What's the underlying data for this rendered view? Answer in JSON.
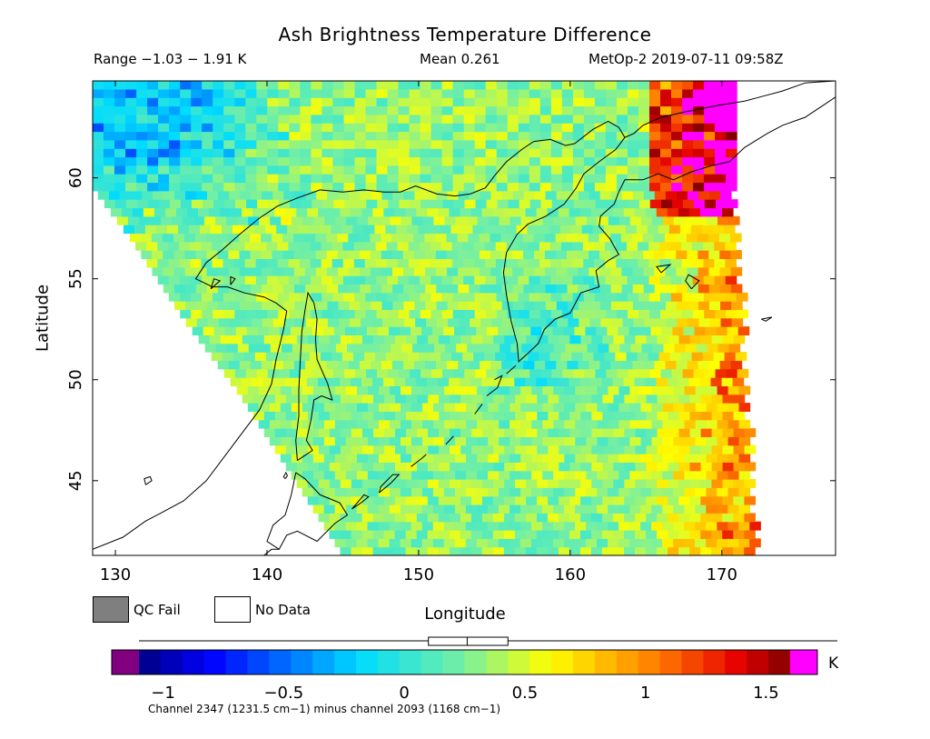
{
  "header": {
    "title": "Ash Brightness Temperature Difference",
    "range": "Range −1.03 − 1.91 K",
    "mean": "Mean 0.261",
    "satellite_time": "MetOp-2 2019-07-11 09:58Z"
  },
  "legend": {
    "qc_fail": "QC Fail",
    "no_data": "No Data",
    "qc_fail_color": "#7f7f7f",
    "no_data_color": "#ffffff"
  },
  "colorbar": {
    "unit": "K",
    "ticks": [
      "−1",
      "−0.5",
      "0",
      "0.5",
      "1",
      "1.5"
    ],
    "tick_values": [
      -1,
      -0.5,
      0,
      0.5,
      1,
      1.5
    ],
    "vmin": -1.1,
    "vmax": 1.6,
    "under_color": "#800080",
    "over_color": "#ff00ff",
    "channel_note": "Channel 2347 (1231.5 cm−1) minus channel 2093 (1168 cm−1)",
    "range_box": [
      0.1,
      0.43
    ],
    "mean_value": 0.261
  },
  "chart_data": {
    "type": "heatmap",
    "title": "Ash Brightness Temperature Difference",
    "xlabel": "Longitude",
    "ylabel": "Latitude",
    "xlim": [
      128.5,
      177.5
    ],
    "ylim": [
      41.3,
      64.8
    ],
    "x_ticks": [
      "130",
      "140",
      "150",
      "160",
      "170"
    ],
    "x_tick_values": [
      130,
      140,
      150,
      160,
      170
    ],
    "y_ticks": [
      "45",
      "50",
      "55",
      "60"
    ],
    "y_tick_values": [
      45,
      50,
      55,
      60
    ],
    "swath": {
      "east_edge": [
        [
          170.5,
          64.8
        ],
        [
          170.5,
          60
        ],
        [
          172,
          41.3
        ]
      ],
      "west_edge": [
        [
          128.5,
          59.5
        ],
        [
          131,
          57
        ],
        [
          134.5,
          53
        ],
        [
          138,
          49.5
        ],
        [
          141,
          46
        ],
        [
          145,
          41.3
        ]
      ]
    },
    "field_description": "BTD values mostly 0.1–0.6 K over the swath; negative values (−0.5 to −1) in the northwest corner; high values (1.0–1.9 K) along the northeastern edge near 165–170E, 58–65N",
    "value_range": [
      -1.03,
      1.91
    ],
    "mean": 0.261
  },
  "coastlines": {
    "polylines": [
      [
        [
          128.5,
          41.6
        ],
        [
          130.5,
          42.2
        ],
        [
          132.0,
          43.0
        ],
        [
          133.0,
          43.4
        ],
        [
          134.5,
          44.0
        ],
        [
          136.0,
          45.0
        ],
        [
          137.3,
          46.3
        ],
        [
          138.5,
          47.5
        ],
        [
          139.5,
          48.5
        ],
        [
          140.3,
          49.8
        ],
        [
          140.6,
          51.0
        ],
        [
          141.1,
          52.5
        ],
        [
          141.3,
          53.4
        ],
        [
          140.6,
          53.8
        ],
        [
          139.8,
          54.1
        ],
        [
          138.5,
          54.3
        ],
        [
          137.4,
          54.6
        ],
        [
          136.4,
          54.6
        ],
        [
          135.3,
          55.0
        ],
        [
          136.0,
          55.8
        ],
        [
          137.0,
          56.4
        ],
        [
          138.2,
          57.2
        ],
        [
          139.5,
          58.0
        ],
        [
          140.7,
          58.6
        ],
        [
          142.0,
          59.0
        ],
        [
          143.5,
          59.4
        ],
        [
          145.0,
          59.3
        ],
        [
          146.4,
          59.4
        ],
        [
          147.7,
          59.3
        ],
        [
          148.8,
          59.3
        ],
        [
          149.8,
          59.6
        ],
        [
          151.2,
          59.2
        ],
        [
          152.4,
          59.1
        ],
        [
          153.4,
          59.2
        ],
        [
          154.4,
          59.5
        ],
        [
          155.0,
          60.1
        ],
        [
          155.8,
          60.8
        ],
        [
          156.8,
          61.4
        ],
        [
          157.6,
          61.8
        ],
        [
          158.7,
          61.9
        ],
        [
          159.7,
          61.6
        ],
        [
          160.3,
          61.7
        ],
        [
          161.5,
          62.4
        ],
        [
          162.5,
          62.8
        ],
        [
          163.2,
          62.5
        ],
        [
          163.6,
          62.0
        ],
        [
          164.2,
          62.2
        ],
        [
          164.8,
          62.6
        ],
        [
          166.0,
          63.0
        ],
        [
          167.8,
          63.3
        ],
        [
          169.8,
          63.6
        ],
        [
          171.5,
          63.8
        ],
        [
          172.5,
          64.0
        ],
        [
          174.0,
          64.3
        ],
        [
          175.5,
          64.7
        ],
        [
          177.5,
          64.8
        ]
      ],
      [
        [
          177.5,
          64.0
        ],
        [
          176.5,
          63.5
        ],
        [
          175.5,
          63.0
        ],
        [
          174.0,
          62.6
        ],
        [
          173.0,
          62.2
        ],
        [
          171.5,
          61.5
        ],
        [
          170.5,
          60.8
        ],
        [
          169.3,
          60.6
        ],
        [
          168.0,
          60.3
        ],
        [
          166.8,
          59.9
        ],
        [
          165.8,
          60.2
        ],
        [
          164.8,
          59.9
        ],
        [
          163.6,
          59.9
        ],
        [
          163.2,
          59.3
        ],
        [
          162.9,
          58.7
        ],
        [
          162.0,
          58.1
        ],
        [
          161.9,
          57.6
        ],
        [
          162.6,
          57.0
        ],
        [
          163.2,
          56.2
        ],
        [
          162.5,
          55.9
        ],
        [
          161.7,
          55.4
        ],
        [
          161.9,
          54.6
        ],
        [
          160.7,
          54.3
        ],
        [
          160.0,
          53.3
        ],
        [
          159.0,
          53.0
        ],
        [
          158.3,
          52.5
        ],
        [
          157.9,
          51.8
        ],
        [
          157.2,
          51.3
        ],
        [
          156.6,
          50.9
        ],
        [
          156.5,
          51.8
        ],
        [
          156.1,
          52.9
        ],
        [
          155.8,
          54.2
        ],
        [
          155.6,
          55.3
        ],
        [
          155.8,
          56.3
        ],
        [
          156.5,
          57.2
        ],
        [
          157.2,
          57.7
        ],
        [
          158.4,
          58.1
        ],
        [
          159.6,
          58.7
        ],
        [
          160.4,
          59.5
        ],
        [
          160.9,
          60.2
        ],
        [
          161.9,
          60.8
        ],
        [
          163.0,
          61.4
        ],
        [
          163.6,
          62.0
        ]
      ],
      [
        [
          142.0,
          46.0
        ],
        [
          141.9,
          47.0
        ],
        [
          142.1,
          48.2
        ],
        [
          142.1,
          49.5
        ],
        [
          142.2,
          51.0
        ],
        [
          142.3,
          52.4
        ],
        [
          142.5,
          53.4
        ],
        [
          142.7,
          54.3
        ],
        [
          143.1,
          53.8
        ],
        [
          143.3,
          53.0
        ],
        [
          143.2,
          52.0
        ],
        [
          143.3,
          51.0
        ],
        [
          144.0,
          49.8
        ],
        [
          144.3,
          49.0
        ],
        [
          143.6,
          49.2
        ],
        [
          143.1,
          49.0
        ],
        [
          142.9,
          48.0
        ],
        [
          142.6,
          47.0
        ],
        [
          143.0,
          46.5
        ],
        [
          142.6,
          46.3
        ],
        [
          142.0,
          46.0
        ]
      ],
      [
        [
          141.9,
          45.4
        ],
        [
          141.6,
          44.3
        ],
        [
          141.2,
          43.3
        ],
        [
          140.4,
          42.8
        ],
        [
          140.0,
          42.0
        ],
        [
          140.8,
          41.6
        ],
        [
          141.3,
          42.3
        ],
        [
          142.0,
          42.5
        ],
        [
          143.3,
          42.0
        ],
        [
          144.5,
          42.9
        ],
        [
          145.3,
          43.3
        ],
        [
          144.8,
          43.9
        ],
        [
          143.5,
          44.3
        ],
        [
          142.5,
          45.1
        ],
        [
          141.9,
          45.4
        ]
      ],
      [
        [
          139.8,
          41.3
        ],
        [
          140.3,
          41.6
        ],
        [
          140.8,
          41.6
        ]
      ]
    ],
    "islands": [
      [
        [
          132.0,
          44.8
        ],
        [
          132.4,
          45.0
        ],
        [
          132.3,
          45.2
        ],
        [
          131.9,
          45.1
        ],
        [
          132.0,
          44.8
        ]
      ],
      [
        [
          141.2,
          45.1
        ],
        [
          141.35,
          45.25
        ],
        [
          141.25,
          45.4
        ],
        [
          141.1,
          45.2
        ],
        [
          141.2,
          45.1
        ]
      ],
      [
        [
          145.6,
          43.6
        ],
        [
          146.2,
          43.9
        ],
        [
          146.7,
          44.2
        ],
        [
          146.4,
          44.3
        ],
        [
          145.6,
          43.6
        ]
      ],
      [
        [
          147.4,
          44.4
        ],
        [
          148.2,
          44.9
        ],
        [
          148.7,
          45.3
        ],
        [
          148.3,
          45.3
        ],
        [
          147.5,
          44.7
        ],
        [
          147.4,
          44.4
        ]
      ],
      [
        [
          149.5,
          45.7
        ],
        [
          150.2,
          46.1
        ],
        [
          150.5,
          46.3
        ]
      ],
      [
        [
          151.8,
          46.8
        ],
        [
          152.3,
          47.2
        ]
      ],
      [
        [
          153.7,
          48.3
        ],
        [
          154.2,
          48.8
        ]
      ],
      [
        [
          154.5,
          49.2
        ],
        [
          155.2,
          49.6
        ],
        [
          155.5,
          50.2
        ],
        [
          155.0,
          50.0
        ]
      ],
      [
        [
          155.8,
          50.3
        ],
        [
          156.4,
          50.7
        ]
      ],
      [
        [
          168.0,
          54.5
        ],
        [
          168.5,
          54.9
        ],
        [
          167.8,
          55.2
        ],
        [
          167.6,
          54.9
        ],
        [
          168.0,
          54.5
        ]
      ],
      [
        [
          166.0,
          55.3
        ],
        [
          166.6,
          55.7
        ],
        [
          165.7,
          55.6
        ],
        [
          166.0,
          55.3
        ]
      ],
      [
        [
          172.6,
          53.0
        ],
        [
          173.3,
          53.1
        ],
        [
          172.9,
          52.9
        ],
        [
          172.6,
          53.0
        ]
      ],
      [
        [
          136.3,
          54.5
        ],
        [
          136.9,
          54.9
        ],
        [
          136.5,
          55.0
        ],
        [
          136.3,
          54.5
        ]
      ],
      [
        [
          137.6,
          54.7
        ],
        [
          137.9,
          55.0
        ],
        [
          137.6,
          55.1
        ],
        [
          137.6,
          54.7
        ]
      ]
    ]
  }
}
